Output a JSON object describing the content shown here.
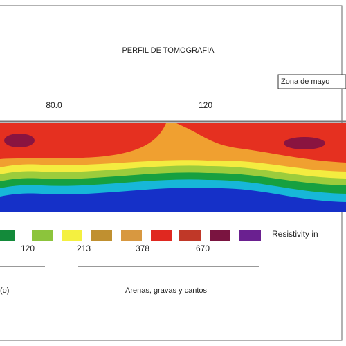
{
  "title": "PERFIL DE TOMOGRAFIA",
  "zone_label": "Zona de mayo",
  "axis": {
    "ticks": [
      "80.0",
      "120"
    ]
  },
  "legend": {
    "title": "Resistivity in",
    "values": [
      "120",
      "213",
      "378",
      "670"
    ]
  },
  "units": [
    "(o)",
    "Arenas, gravas y cantos"
  ]
}
